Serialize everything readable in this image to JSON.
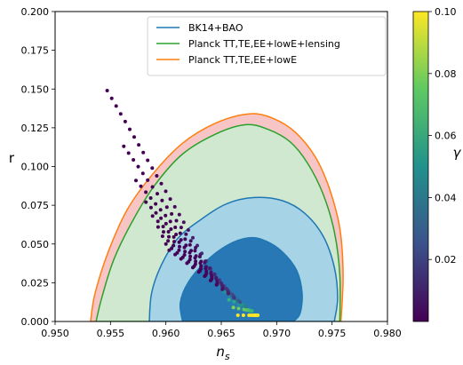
{
  "chart_data": {
    "type": "scatter",
    "xlabel": "n",
    "xlabel_sub": "s",
    "ylabel": "r",
    "xlim": [
      0.95,
      0.98
    ],
    "ylim": [
      0.0,
      0.2
    ],
    "x_ticks": [
      "0.950",
      "0.955",
      "0.960",
      "0.965",
      "0.970",
      "0.975",
      "0.980"
    ],
    "y_ticks": [
      "0.000",
      "0.025",
      "0.050",
      "0.075",
      "0.100",
      "0.125",
      "0.150",
      "0.175",
      "0.200"
    ],
    "legend_position": "top-right",
    "colorbar": {
      "label": "γ",
      "colormap": "viridis",
      "range": [
        0.0,
        0.1
      ],
      "tick_labels": [
        "0.02",
        "0.04",
        "0.06",
        "0.08",
        "0.10"
      ]
    },
    "series": [
      {
        "name": "BK14+BAO",
        "color": "#1f77b4",
        "kind": "contour",
        "contours": [
          {
            "level": "95%",
            "fill": "#a7d3e6",
            "points": [
              [
                0.9585,
                0.0
              ],
              [
                0.9587,
                0.018
              ],
              [
                0.9595,
                0.035
              ],
              [
                0.961,
                0.053
              ],
              [
                0.963,
                0.065
              ],
              [
                0.9655,
                0.076
              ],
              [
                0.968,
                0.08
              ],
              [
                0.9705,
                0.078
              ],
              [
                0.9725,
                0.07
              ],
              [
                0.9742,
                0.055
              ],
              [
                0.9752,
                0.035
              ],
              [
                0.9755,
                0.015
              ],
              [
                0.9752,
                0.0
              ]
            ]
          },
          {
            "level": "68%",
            "fill": "#2878b5",
            "points": [
              [
                0.9615,
                0.0
              ],
              [
                0.9613,
                0.012
              ],
              [
                0.962,
                0.025
              ],
              [
                0.9635,
                0.038
              ],
              [
                0.9655,
                0.049
              ],
              [
                0.9675,
                0.054
              ],
              [
                0.969,
                0.052
              ],
              [
                0.9705,
                0.045
              ],
              [
                0.9718,
                0.033
              ],
              [
                0.9723,
                0.018
              ],
              [
                0.9721,
                0.005
              ],
              [
                0.9715,
                0.0
              ]
            ]
          }
        ]
      },
      {
        "name": "Planck TT,TE,EE+lowE+lensing",
        "color": "#2ca02c",
        "kind": "contour",
        "contours": [
          {
            "level": "95%",
            "fill": "#cfe8cf",
            "points": [
              [
                0.9537,
                0.0
              ],
              [
                0.9542,
                0.015
              ],
              [
                0.9553,
                0.04
              ],
              [
                0.957,
                0.065
              ],
              [
                0.959,
                0.088
              ],
              [
                0.9615,
                0.108
              ],
              [
                0.9645,
                0.121
              ],
              [
                0.9672,
                0.127
              ],
              [
                0.9692,
                0.124
              ],
              [
                0.9712,
                0.116
              ],
              [
                0.9728,
                0.102
              ],
              [
                0.9742,
                0.082
              ],
              [
                0.9752,
                0.058
              ],
              [
                0.9757,
                0.03
              ],
              [
                0.9757,
                0.0
              ]
            ]
          }
        ]
      },
      {
        "name": "Planck TT,TE,EE+lowE",
        "color": "#ff7f0e",
        "kind": "contour",
        "contours": [
          {
            "level": "95%",
            "fill": "#f7c5c5",
            "points": [
              [
                0.9532,
                0.0
              ],
              [
                0.9536,
                0.018
              ],
              [
                0.9548,
                0.045
              ],
              [
                0.9565,
                0.072
              ],
              [
                0.9588,
                0.095
              ],
              [
                0.9615,
                0.115
              ],
              [
                0.9645,
                0.128
              ],
              [
                0.9675,
                0.134
              ],
              [
                0.9697,
                0.131
              ],
              [
                0.9717,
                0.122
              ],
              [
                0.9735,
                0.106
              ],
              [
                0.9748,
                0.085
              ],
              [
                0.9757,
                0.06
              ],
              [
                0.976,
                0.03
              ],
              [
                0.9758,
                0.0
              ]
            ]
          }
        ]
      },
      {
        "kind": "points",
        "colormap": "viridis",
        "lines": [
          {
            "start": [
              0.9547,
              0.149
            ],
            "end": [
              0.9665,
              0.004
            ],
            "n": 30
          },
          {
            "start": [
              0.9562,
              0.113
            ],
            "end": [
              0.967,
              0.004
            ],
            "n": 26
          },
          {
            "start": [
              0.9573,
              0.091
            ],
            "end": [
              0.9675,
              0.004
            ],
            "n": 24
          },
          {
            "start": [
              0.9582,
              0.077
            ],
            "end": [
              0.9677,
              0.004
            ],
            "n": 22
          },
          {
            "start": [
              0.9588,
              0.068
            ],
            "end": [
              0.9679,
              0.004
            ],
            "n": 20
          },
          {
            "start": [
              0.9593,
              0.061
            ],
            "end": [
              0.968,
              0.004
            ],
            "n": 19
          },
          {
            "start": [
              0.9597,
              0.055
            ],
            "end": [
              0.9681,
              0.004
            ],
            "n": 18
          },
          {
            "start": [
              0.96,
              0.05
            ],
            "end": [
              0.9682,
              0.004
            ],
            "n": 17
          },
          {
            "start": [
              0.9603,
              0.046
            ],
            "end": [
              0.9683,
              0.004
            ],
            "n": 16
          }
        ]
      }
    ]
  }
}
